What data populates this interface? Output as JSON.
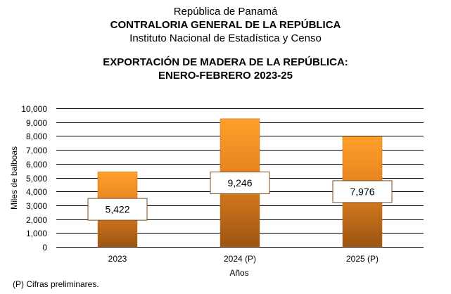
{
  "header": {
    "line1": "República de Panamá",
    "line2": "CONTRALORIA GENERAL DE LA REPÚBLICA",
    "line3": "Instituto Nacional de Estadística y Censo"
  },
  "footnote": "(P) Cifras preliminares.",
  "chart_data": {
    "type": "bar",
    "title": "EXPORTACIÓN DE MADERA DE LA REPÚBLICA:",
    "subtitle": "ENERO-FEBRERO 2023-25",
    "categories": [
      "2023",
      "2024 (P)",
      "2025 (P)"
    ],
    "values": [
      5422,
      9246,
      7976
    ],
    "data_labels": [
      "5,422",
      "9,246",
      "7,976"
    ],
    "xlabel": "Años",
    "ylabel": "Miles de balboas",
    "ylim": [
      0,
      10000
    ],
    "yticks": [
      0,
      1000,
      2000,
      3000,
      4000,
      5000,
      6000,
      7000,
      8000,
      9000,
      10000
    ],
    "ytick_labels": [
      "0",
      "1,000",
      "2,000",
      "3,000",
      "4,000",
      "5,000",
      "6,000",
      "7,000",
      "8,000",
      "9,000",
      "10,000"
    ],
    "grid": true,
    "legend": "none",
    "colors": {
      "bar_top": "#ff9f2a",
      "bar_bottom": "#9a5512",
      "label_border": "#7a4a1e"
    }
  }
}
